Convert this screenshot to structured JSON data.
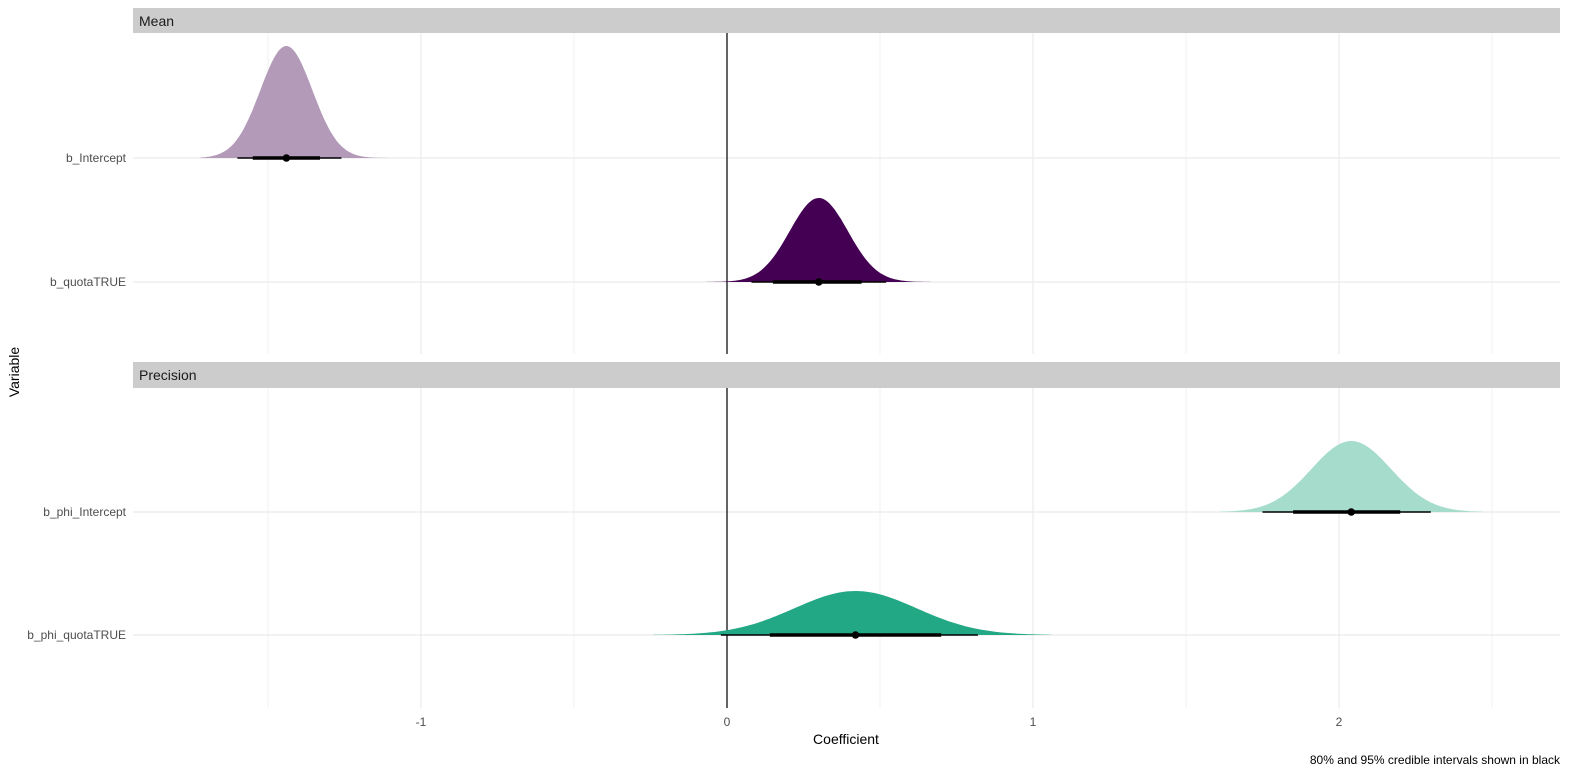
{
  "chart_data": {
    "type": "density",
    "xlabel": "Coefficient",
    "ylabel": "Variable",
    "caption": "80% and 95% credible intervals shown in black",
    "xlim": [
      -1.95,
      2.72
    ],
    "x_ticks": [
      -1,
      0,
      1,
      2
    ],
    "reference_line_x": 0,
    "grid": true,
    "panels": [
      {
        "name": "Mean",
        "variables": [
          {
            "label": "b_Intercept",
            "color": "#b39ab9",
            "mean": -1.44,
            "sd": 0.085,
            "tail_min": -1.72,
            "tail_max": -1.1,
            "point": -1.44,
            "ci80": [
              -1.55,
              -1.33
            ],
            "ci95": [
              -1.6,
              -1.26
            ]
          },
          {
            "label": "b_quotaTRUE",
            "color": "#440154",
            "mean": 0.3,
            "sd": 0.095,
            "tail_min": -0.07,
            "tail_max": 0.7,
            "point": 0.3,
            "ci80": [
              0.15,
              0.44
            ],
            "ci95": [
              0.08,
              0.52
            ]
          }
        ]
      },
      {
        "name": "Precision",
        "variables": [
          {
            "label": "b_phi_Intercept",
            "color": "#a6dccc",
            "mean": 2.04,
            "sd": 0.13,
            "tail_min": 1.61,
            "tail_max": 2.47,
            "point": 2.04,
            "ci80": [
              1.85,
              2.2
            ],
            "ci95": [
              1.75,
              2.3
            ]
          },
          {
            "label": "b_phi_quotaTRUE",
            "color": "#22a884",
            "mean": 0.42,
            "sd": 0.2,
            "tail_min": -0.24,
            "tail_max": 1.06,
            "point": 0.42,
            "ci80": [
              0.14,
              0.7
            ],
            "ci95": [
              -0.02,
              0.82
            ]
          }
        ]
      }
    ]
  }
}
